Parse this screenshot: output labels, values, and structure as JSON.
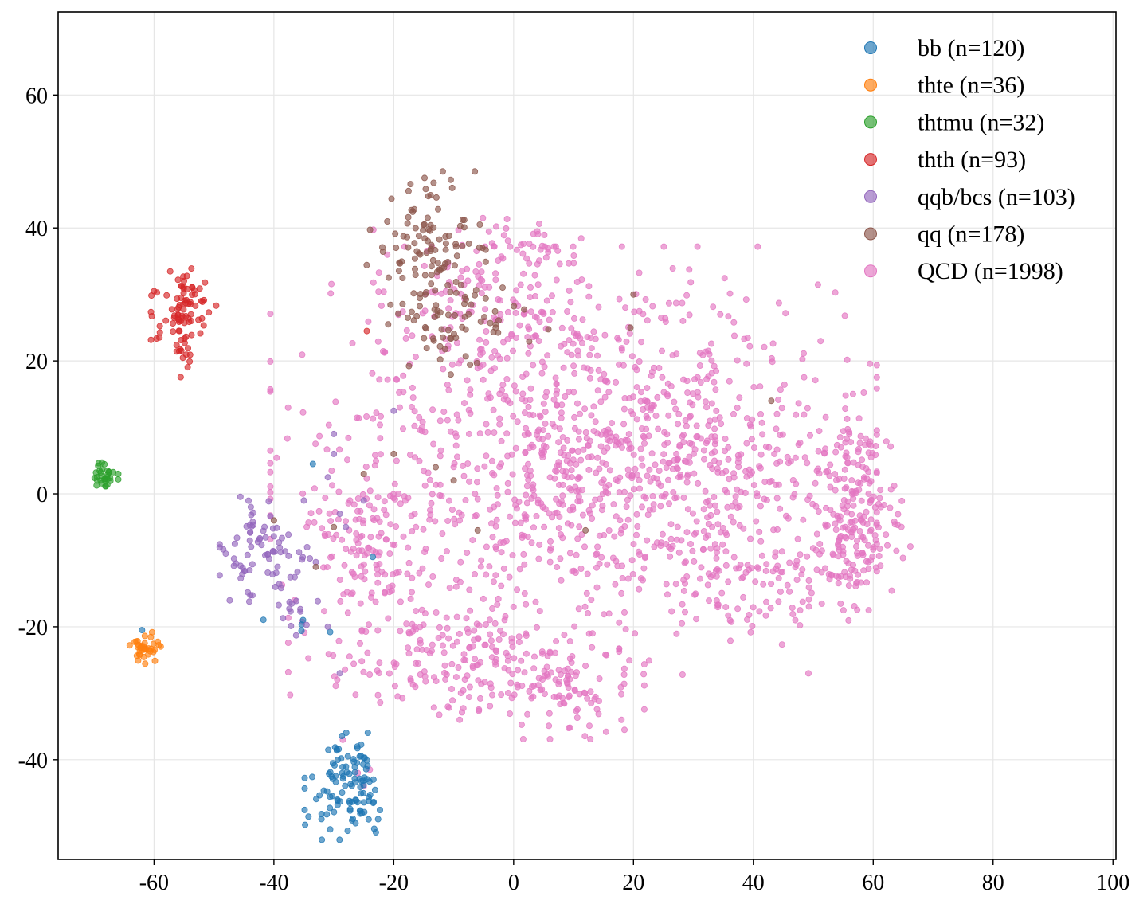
{
  "chart_data": {
    "type": "scatter",
    "title": "",
    "xlabel": "",
    "ylabel": "",
    "xlim": [
      -76,
      100.5
    ],
    "ylim": [
      -55,
      72.5
    ],
    "xticks": [
      -60,
      -40,
      -20,
      0,
      20,
      40,
      60,
      80,
      100
    ],
    "yticks": [
      -40,
      -20,
      0,
      20,
      40,
      60
    ],
    "grid": true,
    "legend_position": "top-right",
    "series": [
      {
        "name": "bb",
        "label": "bb (n=120)",
        "color": "#1f77b4",
        "n": 120,
        "clusters": [
          {
            "center": [
              -27.5,
              -44
            ],
            "spread": [
              3.2,
              3.5
            ],
            "count": 112
          },
          {
            "center": [
              -36,
              -19
            ],
            "spread": [
              2.5,
              0.8
            ],
            "count": 5
          }
        ],
        "points": [
          [
            -33.5,
            4.5
          ],
          [
            -23.5,
            -9.5
          ],
          [
            -62,
            -20.5
          ]
        ]
      },
      {
        "name": "thte",
        "label": "thte (n=36)",
        "color": "#ff7f0e",
        "n": 36,
        "clusters": [
          {
            "center": [
              -61.5,
              -23.3
            ],
            "spread": [
              1.3,
              1.2
            ],
            "count": 36
          }
        ],
        "points": []
      },
      {
        "name": "thtmu",
        "label": "thtmu (n=32)",
        "color": "#2ca02c",
        "n": 32,
        "clusters": [
          {
            "center": [
              -68.5,
              2.8
            ],
            "spread": [
              1.1,
              1.0
            ],
            "count": 32
          }
        ],
        "points": []
      },
      {
        "name": "thth",
        "label": "thth (n=93)",
        "color": "#d62728",
        "n": 93,
        "clusters": [
          {
            "center": [
              -55,
              27
            ],
            "spread": [
              2.4,
              3.0
            ],
            "count": 80
          },
          {
            "center": [
              -55,
              20.5
            ],
            "spread": [
              0.8,
              1.6
            ],
            "count": 9
          }
        ],
        "points": [
          [
            -60,
            30.5
          ],
          [
            -59.5,
            30.3
          ],
          [
            -24.5,
            24.5
          ],
          [
            -56,
            32.2
          ]
        ]
      },
      {
        "name": "qqb/bcs",
        "label": "qqb/bcs (n=103)",
        "color": "#9467bd",
        "n": 103,
        "clusters": [
          {
            "center": [
              -41,
              -8.5
            ],
            "spread": [
              3.5,
              3.5
            ],
            "count": 80
          },
          {
            "center": [
              -36,
              -18
            ],
            "spread": [
              2.2,
              1.5
            ],
            "count": 12
          }
        ],
        "points": [
          [
            -30,
            9
          ],
          [
            -30,
            6
          ],
          [
            -20,
            12.5
          ],
          [
            -31,
            2.5
          ],
          [
            -28,
            -5
          ],
          [
            -25,
            -1
          ],
          [
            -29,
            -3
          ],
          [
            -35,
            -1
          ],
          [
            -31,
            -20
          ],
          [
            -29,
            -27
          ],
          [
            -37,
            -16.5
          ]
        ]
      },
      {
        "name": "qq",
        "label": "qq (n=178)",
        "color": "#8c564b",
        "n": 178,
        "clusters": [
          {
            "center": [
              -15,
              37
            ],
            "spread": [
              4.5,
              5.0
            ],
            "count": 110
          },
          {
            "center": [
              -8,
              26
            ],
            "spread": [
              6.0,
              3.5
            ],
            "count": 55
          }
        ],
        "points": [
          [
            20,
            30
          ],
          [
            19.5,
            25
          ],
          [
            43,
            14
          ],
          [
            -20,
            6
          ],
          [
            -25,
            3
          ],
          [
            -13,
            4
          ],
          [
            -10,
            2
          ],
          [
            -6,
            -5.5
          ],
          [
            12,
            -5.5
          ],
          [
            -30,
            -5
          ],
          [
            -40,
            -4
          ],
          [
            -33,
            -11
          ],
          [
            -3,
            25
          ]
        ]
      },
      {
        "name": "QCD",
        "label": "QCD (n=1998)",
        "color": "#e377c2",
        "n": 1998,
        "clusters": [
          {
            "center": [
              -5,
              30
            ],
            "spread": [
              8,
              5
            ],
            "count": 100
          },
          {
            "center": [
              10,
              5
            ],
            "spread": [
              22,
              14
            ],
            "count": 950
          },
          {
            "center": [
              30,
              8
            ],
            "spread": [
              14,
              9
            ],
            "count": 250
          },
          {
            "center": [
              57,
              -6
            ],
            "spread": [
              4,
              5
            ],
            "count": 170
          },
          {
            "center": [
              8,
              -30
            ],
            "spread": [
              6,
              3
            ],
            "count": 90
          },
          {
            "center": [
              -10,
              -25
            ],
            "spread": [
              12,
              4
            ],
            "count": 170
          },
          {
            "center": [
              -25,
              -8
            ],
            "spread": [
              5,
              8
            ],
            "count": 110
          },
          {
            "center": [
              40,
              -14
            ],
            "spread": [
              8,
              4
            ],
            "count": 80
          },
          {
            "center": [
              56,
              6
            ],
            "spread": [
              3,
              2.5
            ],
            "count": 40
          },
          {
            "center": [
              0,
              37
            ],
            "spread": [
              4,
              2
            ],
            "count": 30
          }
        ],
        "points": [
          [
            -26,
            -42
          ],
          [
            -24,
            -41.5
          ],
          [
            -28.5,
            -37
          ],
          [
            -25,
            -44
          ],
          [
            18,
            -34
          ],
          [
            18.5,
            -35.5
          ],
          [
            47,
            -19
          ],
          [
            56,
            9
          ]
        ]
      }
    ]
  }
}
